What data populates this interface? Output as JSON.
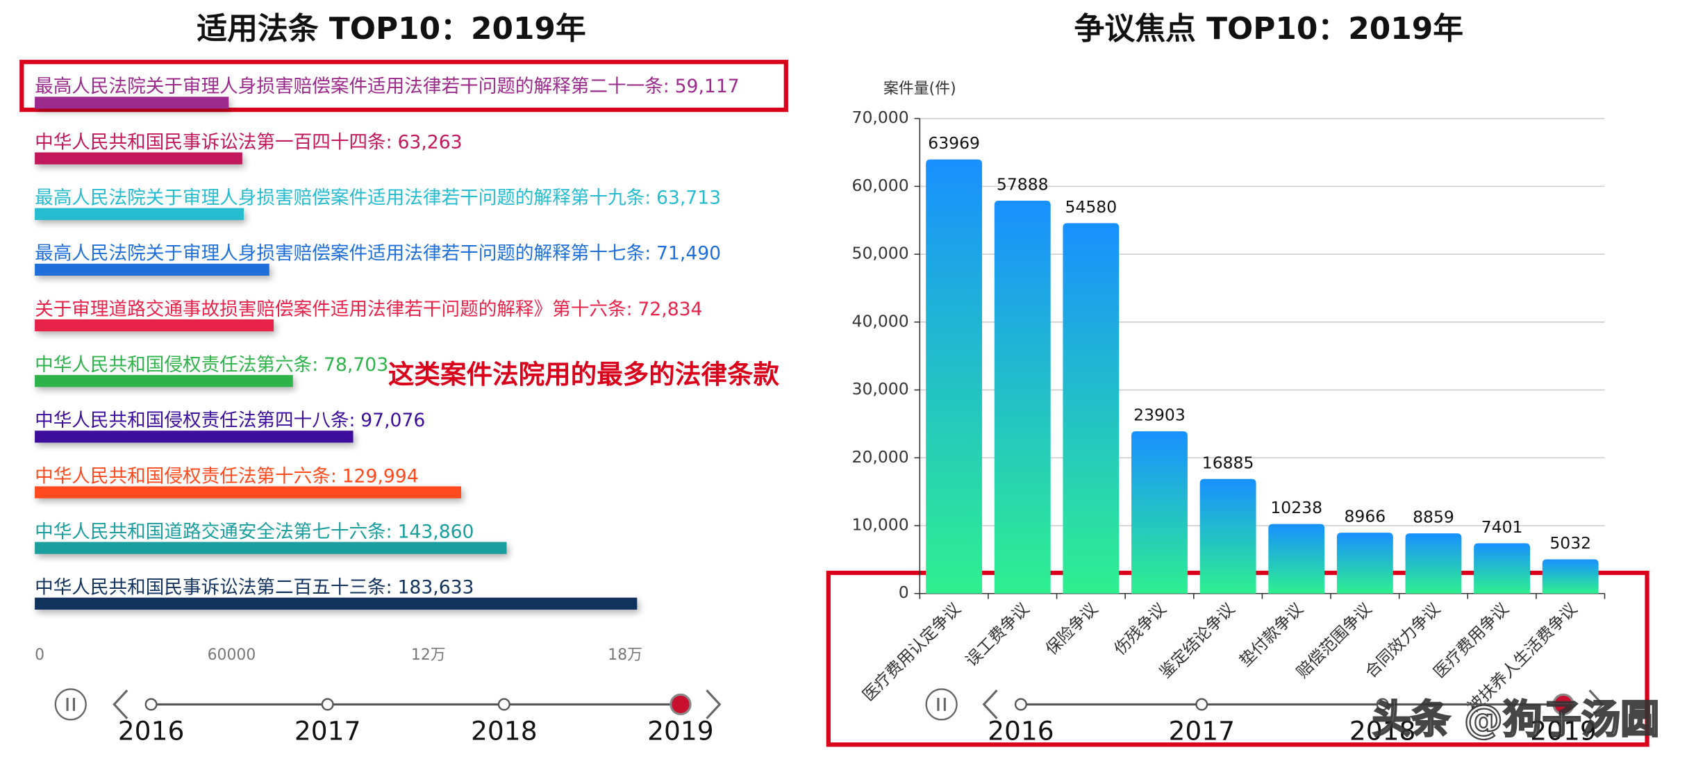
{
  "chart_data": [
    {
      "type": "hbar",
      "title": "适用法条 TOP10：2019年",
      "categories": [
        "最高人民法院关于审理人身损害赔偿案件适用法律若干问题的解释第二十一条:",
        "中华人民共和国民事诉讼法第一百四十四条:",
        "最高人民法院关于审理人身损害赔偿案件适用法律若干问题的解释第十九条:",
        "最高人民法院关于审理人身损害赔偿案件适用法律若干问题的解释第十七条:",
        "关于审理道路交通事故损害赔偿案件适用法律若干问题的解释》第十六条:",
        "中华人民共和国侵权责任法第六条:",
        "中华人民共和国侵权责任法第四十八条:",
        "中华人民共和国侵权责任法第十六条:",
        "中华人民共和国道路交通安全法第七十六条:",
        "中华人民共和国民事诉讼法第二百五十三条:"
      ],
      "values": [
        59117,
        63263,
        63713,
        71490,
        72834,
        78703,
        97076,
        129994,
        143860,
        183633
      ],
      "value_labels": [
        "59,117",
        "63,263",
        "63,713",
        "71,490",
        "72,834",
        "78,703",
        "97,076",
        "129,994",
        "143,860",
        "183,633"
      ],
      "colors": [
        "#9b2a8c",
        "#c2185b",
        "#26bcd0",
        "#1e6fd9",
        "#e8234a",
        "#2db34a",
        "#3d0d9c",
        "#ff4a1e",
        "#1a9e9e",
        "#12325e"
      ],
      "xlim": [
        0,
        183633
      ],
      "xticks": [
        0,
        60000,
        {
          "value": 120000,
          "label": "12万"
        },
        {
          "value": 180000,
          "label": "18万"
        }
      ],
      "timeline": [
        "2016",
        "2017",
        "2018",
        "2019"
      ],
      "timeline_current": "2019"
    },
    {
      "type": "bar",
      "title": "争议焦点 TOP10：2019年",
      "y_label": "案件量(件)",
      "categories": [
        "医疗费用认定争议",
        "误工费争议",
        "保险争议",
        "伤残争议",
        "鉴定结论争议",
        "垫付款争议",
        "赔偿范围争议",
        "合同效力争议",
        "医疗费用争议",
        "被扶养人生活费争议"
      ],
      "values": [
        63969,
        57888,
        54580,
        23903,
        16885,
        10238,
        8966,
        8859,
        7401,
        5032
      ],
      "gradient": [
        "#1890ff",
        "#2ef08f"
      ],
      "ylim": [
        0,
        70000
      ],
      "yticks": [
        0,
        {
          "value": 10000,
          "label": "10,000"
        },
        {
          "value": 20000,
          "label": "20,000"
        },
        {
          "value": 30000,
          "label": "30,000"
        },
        {
          "value": 40000,
          "label": "40,000"
        },
        {
          "value": 50000,
          "label": "50,000"
        },
        {
          "value": 60000,
          "label": "60,000"
        },
        {
          "value": 70000,
          "label": "70,000"
        }
      ],
      "grid": true,
      "timeline": [
        "2016",
        "2017",
        "2018",
        "2019"
      ],
      "timeline_current": "2019"
    }
  ],
  "annotation": "这类案件法院用的最多的法律条款",
  "watermark": "头条 @狗子汤圆"
}
